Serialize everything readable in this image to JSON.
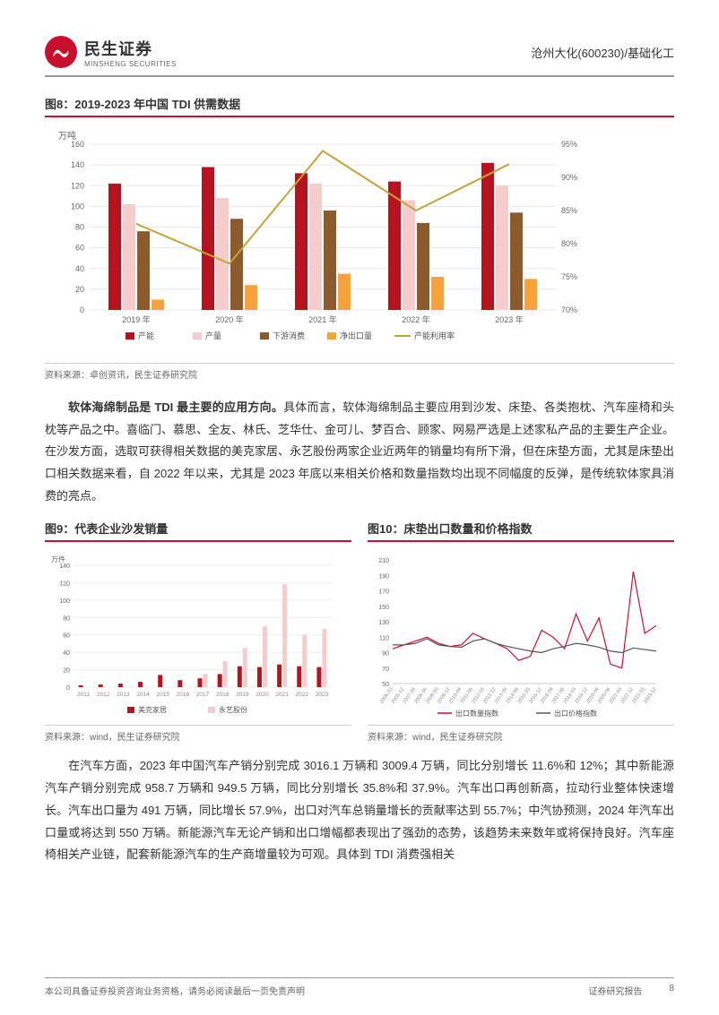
{
  "header": {
    "logo_cn": "民生证券",
    "logo_en": "MINSHENG SECURITIES",
    "right": "沧州大化(600230)/基础化工"
  },
  "chart8": {
    "type": "bar+line",
    "title": "图8：2019-2023 年中国 TDI 供需数据",
    "y_unit": "万吨",
    "categories": [
      "2019 年",
      "2020 年",
      "2021 年",
      "2022 年",
      "2023 年"
    ],
    "series": {
      "capacity": {
        "label": "产能",
        "color": "#b4131f",
        "values": [
          122,
          138,
          132,
          124,
          142
        ]
      },
      "output": {
        "label": "产量",
        "color": "#f4cccc",
        "values": [
          102,
          108,
          122,
          106,
          120
        ]
      },
      "consumption": {
        "label": "下游消费",
        "color": "#8b5b2d",
        "values": [
          76,
          88,
          96,
          84,
          94
        ]
      },
      "netexport": {
        "label": "净出口量",
        "color": "#f8a23c",
        "values": [
          10,
          24,
          35,
          32,
          30
        ]
      }
    },
    "line": {
      "label": "产能利用率",
      "color": "#c8a13c",
      "values": [
        83,
        77,
        94,
        85,
        92
      ]
    },
    "y_left": {
      "min": 0,
      "max": 160,
      "step": 20
    },
    "y_right": {
      "min": 70,
      "max": 95,
      "step": 5
    },
    "source": "资料来源：卓创资讯，民生证券研究院"
  },
  "para1_bold": "软体海绵制品是 TDI 最主要的应用方向。",
  "para1_rest": "具体而言，软体海绵制品主要应用到沙发、床垫、各类抱枕、汽车座椅和头枕等产品之中。喜临门、慕思、全友、林氏、芝华仕、金可儿、梦百合、顾家、网易严选是上述家私产品的主要生产企业。在沙发方面，选取可获得相关数据的美克家居、永艺股份两家企业近两年的销量均有所下滑，但在床垫方面，尤其是床垫出口相关数据来看，自 2022 年以来，尤其是 2023 年底以来相关价格和数量指数均出现不同幅度的反弹，是传统软体家具消费的亮点。",
  "chart9": {
    "type": "bar",
    "title": "图9：代表企业沙发销量",
    "y_unit": "万件",
    "categories": [
      "2011",
      "2012",
      "2013",
      "2014",
      "2015",
      "2016",
      "2017",
      "2018",
      "2019",
      "2020",
      "2021",
      "2022",
      "2023"
    ],
    "series": {
      "meike": {
        "label": "美克家居",
        "color": "#b4131f",
        "values": [
          2,
          3,
          4,
          6,
          14,
          8,
          10,
          15,
          24,
          23,
          26,
          24,
          23
        ]
      },
      "yongyi": {
        "label": "永艺股份",
        "color": "#f4cccc",
        "values": [
          0,
          0,
          0,
          0,
          0,
          0,
          15,
          30,
          45,
          70,
          118,
          60,
          67
        ]
      }
    },
    "y": {
      "min": 0,
      "max": 140,
      "step": 20
    },
    "source": "资料来源：wind，民生证券研究院"
  },
  "chart10": {
    "type": "line",
    "title": "图10：床垫出口数量和价格指数",
    "x_ticks": [
      "2006-03",
      "2005-12",
      "2007-09",
      "2008-06",
      "2009-03",
      "2009-12",
      "2010-09",
      "2011-06",
      "2012-03",
      "2012-12",
      "2013-09",
      "2014-06",
      "2015-03",
      "2015-12",
      "2016-09",
      "2017-06",
      "2018-03",
      "2018-12",
      "2019-09",
      "2020-06",
      "2021-03",
      "2022-12",
      "2023-03",
      "2023-12"
    ],
    "series": {
      "qty": {
        "label": "出口数量指数",
        "color": "#c8102e",
        "values": [
          95,
          100,
          105,
          110,
          102,
          98,
          100,
          115,
          108,
          102,
          95,
          80,
          85,
          119,
          110,
          95,
          140,
          105,
          135,
          75,
          70,
          195,
          115,
          125
        ]
      },
      "price": {
        "label": "出口价格指数",
        "color": "#555555",
        "values": [
          100,
          100,
          102,
          108,
          100,
          98,
          97,
          105,
          108,
          102,
          98,
          95,
          92,
          90,
          95,
          98,
          102,
          100,
          97,
          92,
          90,
          96,
          94,
          92
        ]
      }
    },
    "y": {
      "min": 50,
      "max": 210,
      "step": 20
    },
    "source": "资料来源：wind，民生证券研究院"
  },
  "para2": "在汽车方面，2023 年中国汽车产销分别完成 3016.1 万辆和 3009.4 万辆，同比分别增长 11.6%和 12%；其中新能源汽车产销分别完成 958.7 万辆和 949.5 万辆，同比分别增长 35.8%和 37.9%。汽车出口再创新高，拉动行业整体快速增长。汽车出口量为 491 万辆，同比增长 57.9%，出口对汽车总销量增长的贡献率达到 55.7%；中汽协预测，2024 年汽车出口量或将达到 550 万辆。新能源汽车无论产销和出口增幅都表现出了强劲的态势，该趋势未来数年或将保持良好。汽车座椅相关产业链，配套新能源汽车的生产商增量较为可观。具体到 TDI 消费强相关",
  "footer": {
    "left": "本公司具备证券投资咨询业务资格，请务必阅读最后一页免责声明",
    "right1": "证券研究报告",
    "right2": "8"
  }
}
